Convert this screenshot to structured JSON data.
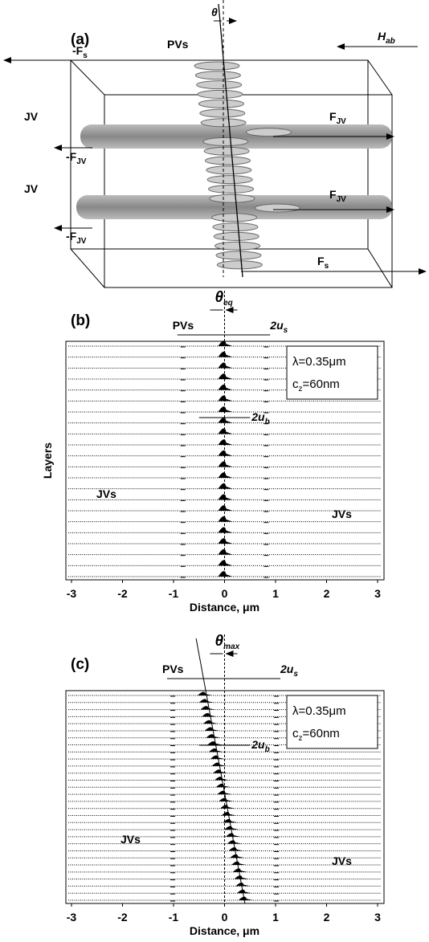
{
  "panel_a": {
    "label": "(a)",
    "theta": "θ",
    "field": {
      "main": "H",
      "sub": "ab"
    },
    "forces": [
      {
        "main": "-F",
        "sub": "s"
      },
      {
        "main": "PVs"
      },
      {
        "main": "JV"
      },
      {
        "main": "F",
        "sub": "JV"
      },
      {
        "main": "-F",
        "sub": "JV"
      },
      {
        "main": "JV"
      },
      {
        "main": "F",
        "sub": "JV"
      },
      {
        "main": "-F",
        "sub": "JV"
      },
      {
        "main": "F",
        "sub": "s"
      }
    ]
  },
  "panel_b": {
    "label": "(b)",
    "theta": {
      "main": "θ",
      "sub": "eq"
    },
    "pvs": "PVs",
    "us": {
      "main": "2u",
      "sub": "s"
    },
    "ub": {
      "main": "2u",
      "sub": "b"
    },
    "params": [
      "λ=0.35μm",
      {
        "main": "c",
        "sub": "z",
        "rest": "=60nm"
      }
    ],
    "ylabel": "Layers",
    "jvs": [
      "JVs",
      "JVs"
    ],
    "xlim": [
      -3,
      3
    ],
    "xticks": [
      -3,
      -2,
      -1,
      0,
      1,
      2,
      3
    ],
    "xlabel": "Distance, μm"
  },
  "panel_c": {
    "label": "(c)",
    "theta": {
      "main": "θ",
      "sub": "max"
    },
    "pvs": "PVs",
    "us": {
      "main": "2u",
      "sub": "s"
    },
    "ub": {
      "main": "2u",
      "sub": "b"
    },
    "params": [
      "λ=0.35μm",
      {
        "main": "c",
        "sub": "z",
        "rest": "=60nm"
      }
    ],
    "jvs": [
      "JVs",
      "JVs"
    ],
    "xlim": [
      -3,
      3
    ],
    "xticks": [
      -3,
      -2,
      -1,
      0,
      1,
      2,
      3
    ],
    "xlabel": "Distance, μm"
  }
}
